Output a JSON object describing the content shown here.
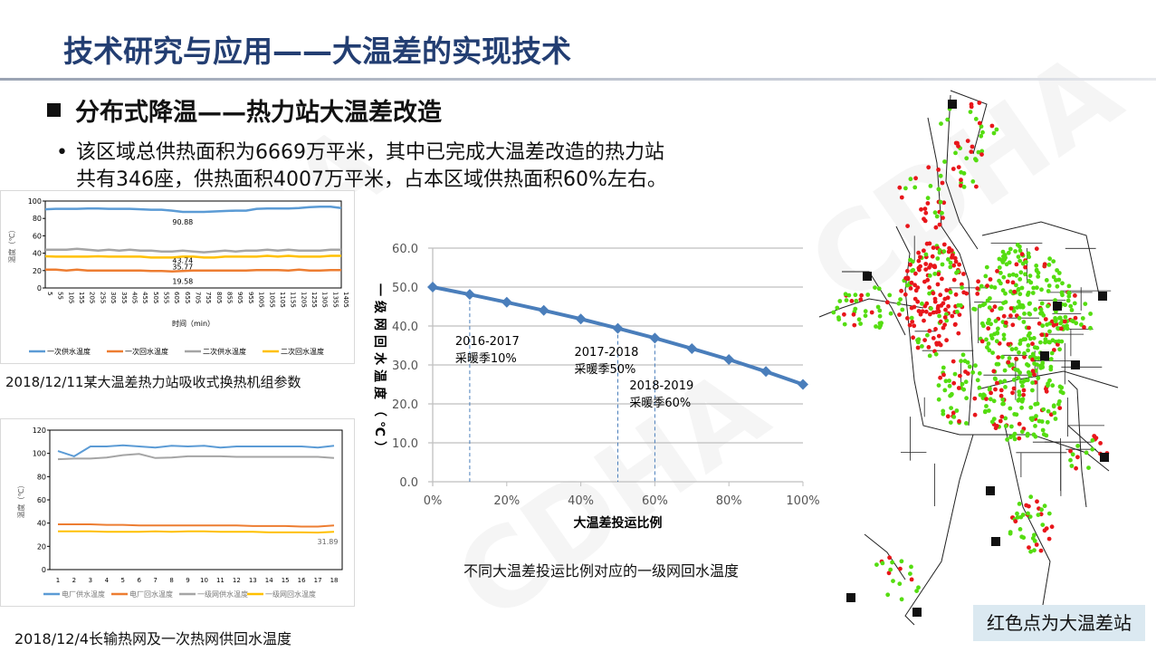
{
  "header": {
    "title": "技术研究与应用——大温差的实现技术",
    "subtitle": "分布式降温——热力站大温差改造",
    "bullet_lines": [
      "该区域总供热面积为6669万平米，其中已完成大温差改造的热力站",
      "共有346座，供热面积4007万平米，占本区域供热面积60%左右。"
    ]
  },
  "watermark": "CDHA",
  "captions": {
    "chart1": "2018/12/11某大温差热力站吸收式换热机组参数",
    "chart2": "2018/12/4长输热网及一次热网供回水温度",
    "chart3": "不同大温差投运比例对应的一级网回水温度"
  },
  "map": {
    "legend": "红色点为大温差站",
    "colors": {
      "large_dt_station": "#e8161b",
      "other_station": "#55dd11",
      "pipe": "#222222"
    }
  },
  "chart_data": [
    {
      "type": "line",
      "ylabel": "温度（℃）",
      "xlabel": "时间（min）",
      "ylim": [
        0,
        100
      ],
      "yticks": [
        "0",
        "20",
        "40",
        "60",
        "80",
        "100"
      ],
      "categories": [
        "5",
        "55",
        "105",
        "155",
        "205",
        "255",
        "305",
        "355",
        "405",
        "455",
        "505",
        "555",
        "605",
        "655",
        "705",
        "755",
        "805",
        "855",
        "905",
        "955",
        "1005",
        "1055",
        "1105",
        "1155",
        "1205",
        "1255",
        "1305",
        "1355",
        "1405"
      ],
      "grid": false,
      "legend": "bottom",
      "series": [
        {
          "name": "一次供水温度",
          "color": "#5b9bd5",
          "values": [
            90.5,
            91,
            91,
            91,
            91.5,
            91.5,
            91,
            91,
            91,
            90.5,
            90,
            90,
            89,
            87.5,
            87.5,
            87.5,
            88,
            88.5,
            89,
            89,
            91,
            91.5,
            91.5,
            91.5,
            92,
            93,
            93.5,
            93.5,
            92
          ],
          "label": "90.88"
        },
        {
          "name": "一次回水温度",
          "color": "#ed7d31",
          "values": [
            21,
            21,
            20,
            21,
            20,
            20,
            20,
            20,
            20,
            20,
            19.5,
            19.5,
            19,
            19.5,
            20,
            20,
            20,
            20,
            20,
            20,
            20.5,
            20.5,
            20.5,
            20,
            21,
            20,
            20,
            20.5,
            20.5
          ],
          "label": "19.58"
        },
        {
          "name": "二次供水温度",
          "color": "#a5a5a5",
          "values": [
            44,
            44,
            44,
            45,
            44,
            43,
            44,
            43,
            44,
            43,
            43,
            42,
            42,
            43,
            42,
            41,
            42,
            43,
            42,
            43,
            43,
            44,
            43,
            44,
            43,
            43,
            43,
            44,
            44
          ],
          "label": "43.74"
        },
        {
          "name": "二次回水温度",
          "color": "#ffc000",
          "values": [
            36.5,
            36,
            36,
            36,
            36,
            36.5,
            36,
            36,
            36,
            36,
            35,
            35,
            35,
            36,
            36,
            35,
            35,
            36,
            36,
            36,
            36,
            37,
            36,
            37,
            36,
            36,
            36,
            37,
            37
          ],
          "label": "35.77"
        }
      ]
    },
    {
      "type": "line",
      "ylabel": "温度（℃）",
      "ylim": [
        0,
        120
      ],
      "yticks": [
        "0",
        "20",
        "40",
        "60",
        "80",
        "100",
        "120"
      ],
      "categories": [
        "1",
        "2",
        "3",
        "4",
        "5",
        "6",
        "7",
        "8",
        "9",
        "10",
        "11",
        "12",
        "13",
        "14",
        "15",
        "16",
        "17",
        "18"
      ],
      "grid": false,
      "legend": "bottom",
      "series": [
        {
          "name": "电厂供水温度",
          "color": "#5b9bd5",
          "values": [
            102,
            97.5,
            106,
            106,
            107,
            106,
            105,
            106.5,
            106,
            106.5,
            105,
            106,
            106,
            106,
            106,
            106,
            105,
            106.5
          ]
        },
        {
          "name": "电厂回水温度",
          "color": "#ed7d31",
          "values": [
            39,
            39,
            39,
            38.5,
            38.5,
            38,
            38,
            38,
            38,
            38,
            38,
            38,
            37.5,
            37.5,
            37.5,
            37,
            37,
            38
          ]
        },
        {
          "name": "一级网供水温度",
          "color": "#a5a5a5",
          "values": [
            95,
            95.5,
            95.5,
            96.5,
            98.5,
            99.5,
            96,
            96.5,
            97.5,
            97.5,
            97.5,
            97,
            97,
            97,
            97,
            97,
            97,
            96
          ]
        },
        {
          "name": "一级网回水温度",
          "color": "#ffc000",
          "values": [
            33,
            33,
            33,
            32.5,
            32.5,
            32.5,
            33,
            32.5,
            33,
            33,
            32.5,
            32.5,
            32.5,
            32,
            32,
            32,
            31.89,
            32.5
          ],
          "label": "31.89"
        }
      ]
    },
    {
      "type": "line",
      "xlabel": "大温差投运比例",
      "ylabel": "一级网回水温度（℃）",
      "ylim": [
        0,
        60
      ],
      "xlim": [
        0,
        100
      ],
      "yticks": [
        "0.0",
        "10.0",
        "20.0",
        "30.0",
        "40.0",
        "50.0",
        "60.0"
      ],
      "xticks": [
        "0%",
        "20%",
        "40%",
        "60%",
        "80%",
        "100%"
      ],
      "grid": true,
      "x": [
        0,
        10,
        20,
        30,
        40,
        50,
        60,
        70,
        80,
        90,
        100
      ],
      "series": [
        {
          "color": "#4a7ebb",
          "marker": "diamond",
          "values": [
            50.0,
            48.1,
            46.1,
            44.0,
            41.8,
            39.4,
            36.9,
            34.2,
            31.4,
            28.3,
            25.0
          ]
        }
      ],
      "annotations": [
        {
          "x": 10,
          "line1": "2016-2017",
          "line2": "采暖季10%"
        },
        {
          "x": 50,
          "line1": "2017-2018",
          "line2": "采暖季50%"
        },
        {
          "x": 60,
          "line1": "2018-2019",
          "line2": "采暖季60%"
        }
      ]
    }
  ]
}
